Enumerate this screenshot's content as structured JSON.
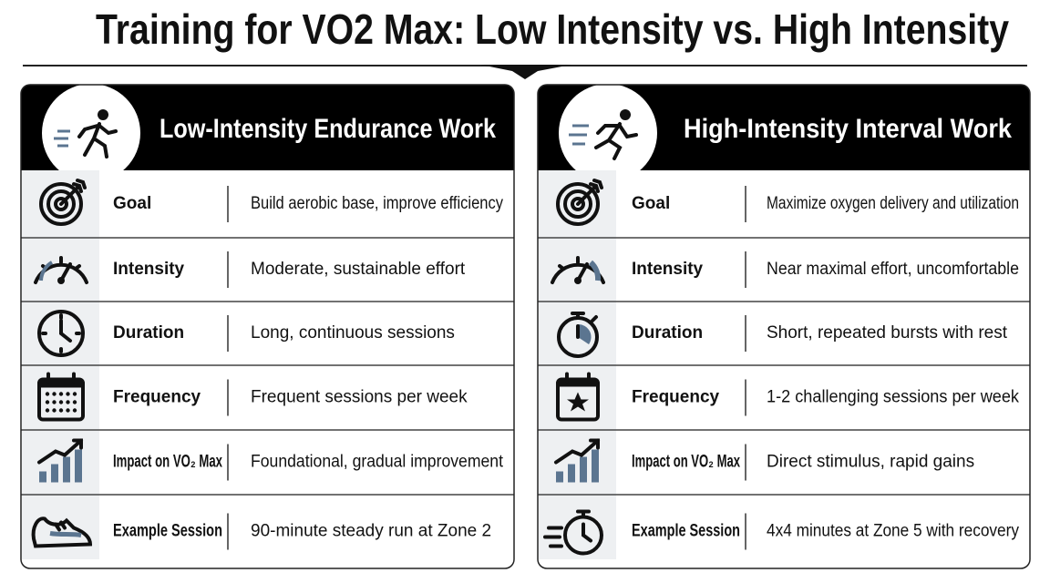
{
  "title": "Training for VO2 Max: Low Intensity vs. High Intensity",
  "panels": [
    {
      "title": "Low-Intensity Endurance Work",
      "rows": [
        {
          "label": "Goal",
          "value": "Build aerobic base, improve efficiency"
        },
        {
          "label": "Intensity",
          "value": "Moderate, sustainable effort"
        },
        {
          "label": "Duration",
          "value": "Long, continuous sessions"
        },
        {
          "label": "Frequency",
          "value": "Frequent sessions per week"
        },
        {
          "label": "Impact on VO₂ Max",
          "value": "Foundational, gradual improvement"
        },
        {
          "label": "Example Session",
          "value": "90-minute steady run at Zone 2"
        }
      ]
    },
    {
      "title": "High-Intensity Interval Work",
      "rows": [
        {
          "label": "Goal",
          "value": "Maximize oxygen delivery and utilization"
        },
        {
          "label": "Intensity",
          "value": "Near maximal effort, uncomfortable"
        },
        {
          "label": "Duration",
          "value": "Short, repeated bursts with rest"
        },
        {
          "label": "Frequency",
          "value": "1-2 challenging sessions per week"
        },
        {
          "label": "Impact on VO₂ Max",
          "value": "Direct stimulus, rapid gains"
        },
        {
          "label": "Example Session",
          "value": "4x4 minutes at Zone 5 with recovery"
        }
      ]
    }
  ]
}
